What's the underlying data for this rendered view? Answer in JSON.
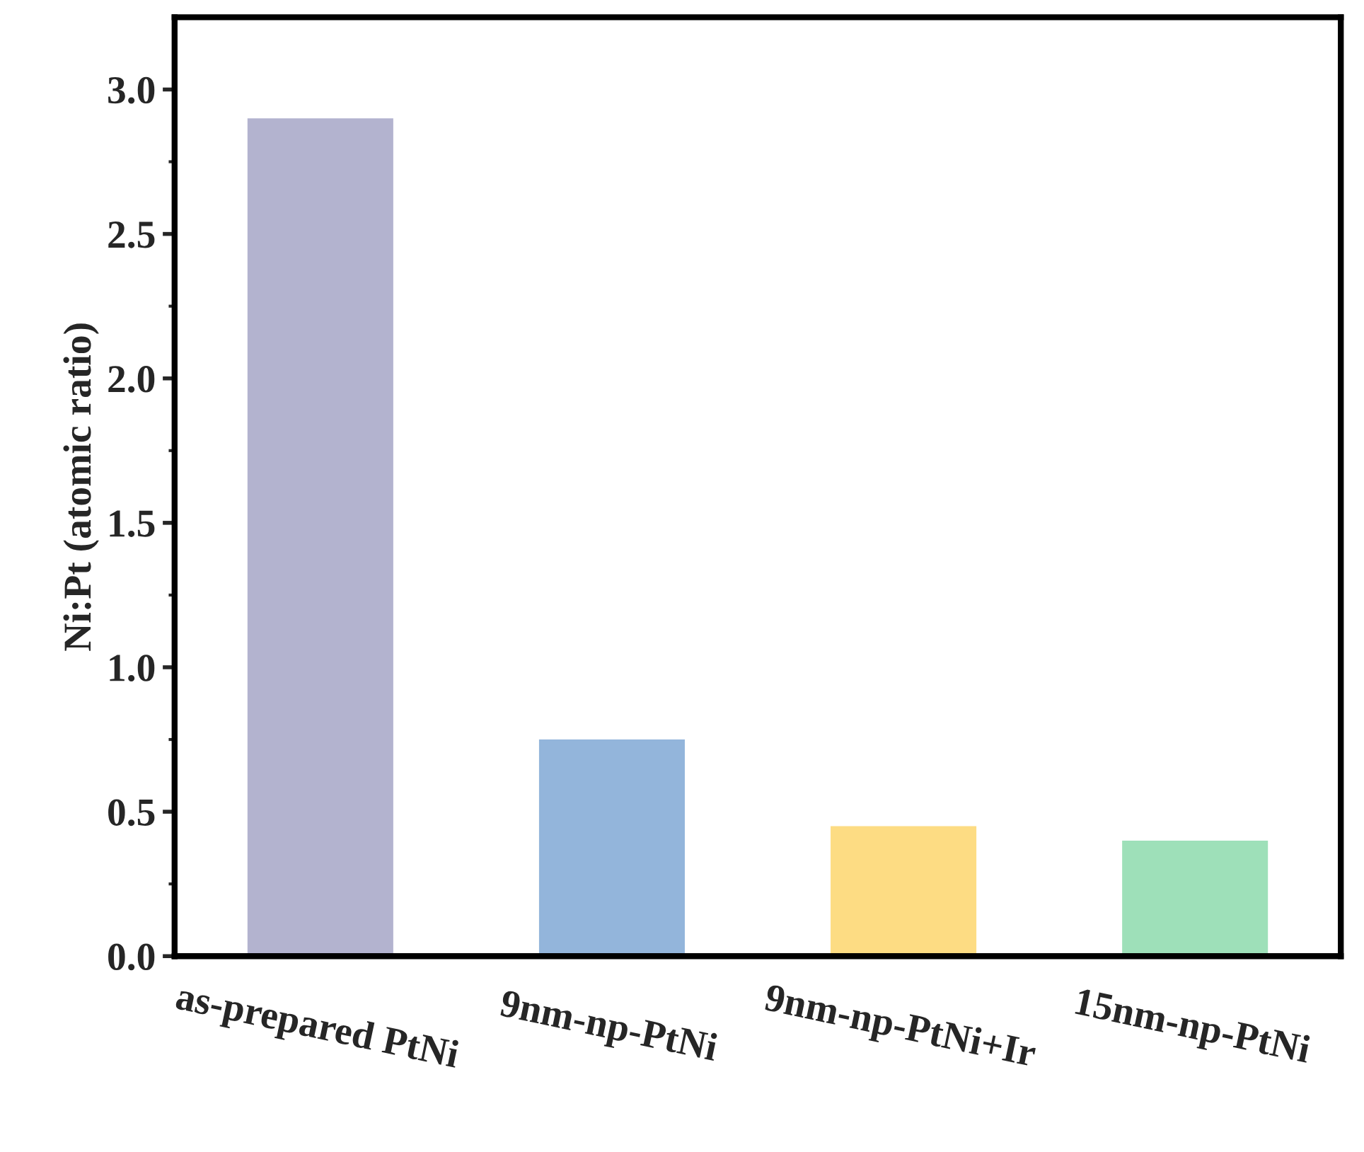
{
  "chart_data": {
    "type": "bar",
    "ylabel": "Ni:Pt (atomic ratio)",
    "categories": [
      "as-prepared PtNi",
      "9nm-np-PtNi",
      "9nm-np-PtNi+Ir",
      "15nm-np-PtNi"
    ],
    "values": [
      2.9,
      0.75,
      0.45,
      0.4
    ],
    "colors": [
      "#b3b3cf",
      "#93b5db",
      "#fddc83",
      "#9ee0b9"
    ],
    "ylim": [
      0,
      3.25
    ],
    "yticks": [
      {
        "value": 0,
        "label": "0.0"
      },
      {
        "value": 0.25,
        "label": null
      },
      {
        "value": 0.5,
        "label": "0.5"
      },
      {
        "value": 0.75,
        "label": null
      },
      {
        "value": 1,
        "label": "1.0"
      },
      {
        "value": 1.25,
        "label": null
      },
      {
        "value": 1.5,
        "label": "1.5"
      },
      {
        "value": 1.75,
        "label": null
      },
      {
        "value": 2,
        "label": "2.0"
      },
      {
        "value": 2.25,
        "label": null
      },
      {
        "value": 2.5,
        "label": "2.5"
      },
      {
        "value": 2.75,
        "label": null
      },
      {
        "value": 3,
        "label": "3.0"
      }
    ],
    "grid": false,
    "legend": false
  }
}
